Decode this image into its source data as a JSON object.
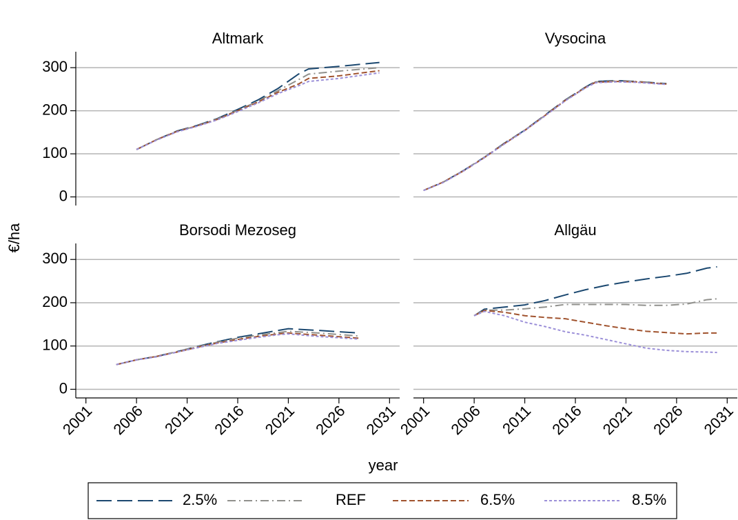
{
  "chart_data": {
    "type": "line",
    "ylabel": "€/ha",
    "xlabel": "year",
    "xlim": [
      2000,
      2032
    ],
    "xticks": [
      2001,
      2006,
      2011,
      2016,
      2021,
      2026,
      2031
    ],
    "ylim": [
      -20,
      337
    ],
    "yticks": [
      0,
      100,
      200,
      300
    ],
    "grid": true,
    "series": [
      {
        "name": "2.5%",
        "color": "#1a476f",
        "dash": "22,8"
      },
      {
        "name": "REF",
        "color": "#90908c",
        "dash": "12,5,2,5"
      },
      {
        "name": "6.5%",
        "color": "#a0522d",
        "dash": "8,4"
      },
      {
        "name": "8.5%",
        "color": "#9b8fd8",
        "dash": "4,3"
      }
    ],
    "panels": [
      {
        "title": "Altmark",
        "x": [
          2006,
          2008,
          2010,
          2012,
          2014,
          2016,
          2018,
          2020,
          2022,
          2023,
          2026,
          2030
        ],
        "series": [
          {
            "values": [
              110,
              133,
              153,
              166,
              182,
              203,
              225,
              252,
              285,
              297,
              303,
              312
            ]
          },
          {
            "values": [
              110,
              133,
              152,
              165,
              181,
              201,
              222,
              247,
              272,
              285,
              292,
              300
            ]
          },
          {
            "values": [
              110,
              133,
              152,
              165,
              180,
              200,
              220,
              243,
              262,
              275,
              281,
              293
            ]
          },
          {
            "values": [
              110,
              132,
              151,
              164,
              179,
              198,
              218,
              240,
              258,
              268,
              275,
              288
            ]
          }
        ]
      },
      {
        "title": "Vysocina",
        "x": [
          2001,
          2003,
          2005,
          2007,
          2009,
          2011,
          2013,
          2015,
          2017,
          2018,
          2020,
          2022,
          2025
        ],
        "series": [
          {
            "values": [
              15,
              35,
              62,
              92,
              125,
              155,
              190,
              225,
              255,
              268,
              270,
              268,
              263
            ]
          },
          {
            "values": [
              15,
              35,
              62,
              92,
              124,
              155,
              189,
              224,
              254,
              267,
              269,
              268,
              262
            ]
          },
          {
            "values": [
              15,
              35,
              61,
              91,
              124,
              154,
              189,
              224,
              254,
              266,
              268,
              267,
              262
            ]
          },
          {
            "values": [
              15,
              34,
              61,
              91,
              123,
              154,
              188,
              223,
              253,
              265,
              267,
              266,
              261
            ]
          }
        ]
      },
      {
        "title": "Borsodi Mezoseg",
        "x": [
          2004,
          2006,
          2008,
          2010,
          2012,
          2014,
          2016,
          2018,
          2020,
          2021,
          2024,
          2028
        ],
        "series": [
          {
            "values": [
              57,
              68,
              76,
              87,
              99,
              110,
              120,
              128,
              136,
              140,
              136,
              130
            ]
          },
          {
            "values": [
              57,
              68,
              76,
              87,
              98,
              109,
              118,
              125,
              131,
              134,
              130,
              123
            ]
          },
          {
            "values": [
              57,
              68,
              76,
              86,
              97,
              107,
              115,
              122,
              128,
              130,
              125,
              118
            ]
          },
          {
            "values": [
              57,
              68,
              75,
              86,
              96,
              106,
              113,
              120,
              126,
              128,
              122,
              116
            ]
          }
        ]
      },
      {
        "title": "Allgäu",
        "x": [
          2006,
          2007,
          2009,
          2011,
          2013,
          2015,
          2017,
          2019,
          2021,
          2023,
          2025,
          2027,
          2029,
          2030
        ],
        "series": [
          {
            "values": [
              170,
              185,
              190,
              195,
              205,
              218,
              230,
              240,
              248,
              255,
              261,
              268,
              280,
              283
            ]
          },
          {
            "values": [
              170,
              183,
              183,
              186,
              190,
              196,
              196,
              196,
              196,
              194,
              194,
              197,
              207,
              209
            ]
          },
          {
            "values": [
              170,
              182,
              178,
              170,
              166,
              163,
              155,
              147,
              140,
              134,
              131,
              128,
              130,
              130
            ]
          },
          {
            "values": [
              170,
              180,
              170,
              155,
              145,
              133,
              125,
              115,
              105,
              95,
              90,
              87,
              86,
              85
            ]
          }
        ]
      }
    ]
  }
}
